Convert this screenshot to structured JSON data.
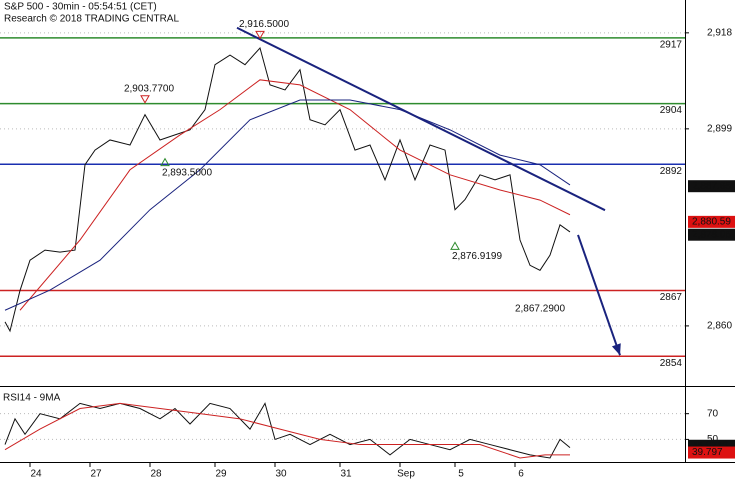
{
  "chart_data": [
    {
      "type": "line",
      "title": "S&P 500 - 30min - 05:54:51 (CET)",
      "subtitle": "Research © 2018 TRADING CENTRAL",
      "xlim": [
        0,
        137
      ],
      "ylim": [
        2848.7,
        2924.5
      ],
      "xticks": [
        {
          "value": 6,
          "label": "24"
        },
        {
          "value": 18,
          "label": "27"
        },
        {
          "value": 30,
          "label": "28"
        },
        {
          "value": 43,
          "label": "29"
        },
        {
          "value": 55,
          "label": "30"
        },
        {
          "value": 68,
          "label": "31"
        },
        {
          "value": 80,
          "label": "Sep"
        },
        {
          "value": 91,
          "label": "5"
        },
        {
          "value": 103,
          "label": "6"
        }
      ],
      "yticks": [
        {
          "value": 2918,
          "label": "2,918"
        },
        {
          "value": 2899,
          "label": "2,899"
        },
        {
          "value": 2860,
          "label": "2,860"
        }
      ],
      "grid": true,
      "series": [
        {
          "name": "S&P 500",
          "color": "#111111",
          "x": [
            1,
            2,
            4,
            6,
            9,
            12,
            15,
            17,
            19,
            22,
            26,
            29,
            32,
            35,
            38,
            41,
            43,
            46,
            49,
            52,
            54,
            57,
            60,
            62,
            65,
            68,
            71,
            74,
            77,
            80,
            83,
            86,
            89,
            91,
            93,
            96,
            99,
            102,
            104,
            106,
            108,
            110,
            112,
            114
          ],
          "values": [
            2860.8,
            2859,
            2867,
            2873,
            2875,
            2874.6,
            2875,
            2891.9,
            2894.8,
            2896.8,
            2895.8,
            2901.8,
            2896.8,
            2897.8,
            2898.8,
            2902.8,
            2911.7,
            2913.6,
            2911.7,
            2915,
            2907.7,
            2906.7,
            2910.7,
            2900.8,
            2899.8,
            2902.8,
            2894.8,
            2895.8,
            2888.9,
            2896.8,
            2888.9,
            2895.8,
            2894.8,
            2883,
            2885,
            2889.9,
            2888.9,
            2889.9,
            2877,
            2872,
            2871,
            2874,
            2880,
            2878.6
          ]
        },
        {
          "name": "MA fast",
          "color": "#cc2222",
          "x": [
            4,
            16,
            26,
            36,
            44,
            52,
            60,
            70,
            80,
            90,
            100,
            108,
            114
          ],
          "values": [
            2863.1,
            2877,
            2890.9,
            2897.8,
            2902.8,
            2908.7,
            2907.7,
            2902.8,
            2894.8,
            2889.9,
            2886.9,
            2884.9,
            2882
          ]
        },
        {
          "name": "MA slow",
          "color": "#1a237e",
          "x": [
            1,
            10,
            20,
            30,
            40,
            50,
            60,
            70,
            80,
            90,
            100,
            108,
            114
          ],
          "values": [
            2863.1,
            2867.1,
            2873,
            2883,
            2890.9,
            2900.8,
            2904.7,
            2904.7,
            2902.8,
            2898.8,
            2893.8,
            2891.9,
            2887.9
          ]
        }
      ],
      "levels": [
        {
          "value": 2917,
          "color": "#2e8b2e"
        },
        {
          "value": 2904,
          "color": "#2e8b2e"
        },
        {
          "value": 2892,
          "color": "#1a2fb0"
        },
        {
          "value": 2867,
          "color": "#cc2222"
        },
        {
          "value": 2854,
          "color": "#cc2222"
        }
      ],
      "annotations": [
        {
          "x": 52,
          "value": 2916.5,
          "label": "2,916.5000",
          "marker": "down"
        },
        {
          "x": 29,
          "value": 2903.77,
          "label": "2,903.7700",
          "marker": "down"
        },
        {
          "x": 33,
          "value": 2893.5,
          "label": "2,893.5000",
          "marker": "up"
        },
        {
          "x": 91,
          "value": 2876.9199,
          "label": "2,876.9199",
          "marker": "up"
        },
        {
          "x": 108,
          "value": 2867.29,
          "label": "2,867.2900",
          "marker": "none"
        }
      ],
      "trendline": {
        "x": [
          47.4,
          121
        ],
        "values": [
          2919,
          2882.9
        ],
        "color": "#1a237e"
      },
      "arrow": {
        "x": [
          115.6,
          124
        ],
        "values": [
          2878,
          2854.2
        ],
        "color": "#1a237e"
      },
      "price_labels": [
        {
          "value": 2887.65,
          "label": "2,887.65",
          "color": "#111111"
        },
        {
          "value": 2880.59,
          "label": "2,880.59",
          "color": "#dd1111"
        },
        {
          "value": 2878.05,
          "label": "2,878.05",
          "color": "#111111"
        }
      ]
    },
    {
      "type": "line",
      "title": "RSI14 - 9MA",
      "xlim": [
        0,
        137
      ],
      "ylim": [
        34,
        88.4
      ],
      "yticks": [
        70,
        50
      ],
      "grid": true,
      "series": [
        {
          "name": "RSI14",
          "color": "#111111",
          "x": [
            1,
            3,
            5,
            8,
            12,
            16,
            20,
            24,
            28,
            32,
            35,
            38,
            42,
            46,
            50,
            53,
            55,
            58,
            62,
            66,
            70,
            74,
            78,
            82,
            86,
            90,
            94,
            98,
            102,
            106,
            110,
            112,
            114
          ],
          "values": [
            46,
            66,
            54,
            70,
            66,
            78,
            74,
            78,
            74,
            66,
            74,
            62,
            78,
            74,
            58,
            78,
            50,
            54,
            46,
            54,
            46,
            50,
            38,
            50,
            46,
            42,
            50,
            46,
            42,
            38,
            35.6,
            50,
            43.6
          ]
        },
        {
          "name": "9MA",
          "color": "#cc2222",
          "x": [
            1,
            8,
            16,
            24,
            32,
            40,
            48,
            56,
            64,
            72,
            80,
            88,
            96,
            104,
            109,
            114
          ],
          "values": [
            42,
            58,
            74,
            78,
            74,
            70,
            66,
            58,
            50,
            46,
            46,
            46,
            46,
            35.6,
            38,
            38
          ]
        }
      ],
      "price_labels": [
        {
          "value": 45.0713,
          "label": "45.0713",
          "color": "#111111"
        },
        {
          "value": 39.797,
          "label": "39.797",
          "color": "#dd1111"
        }
      ]
    }
  ]
}
